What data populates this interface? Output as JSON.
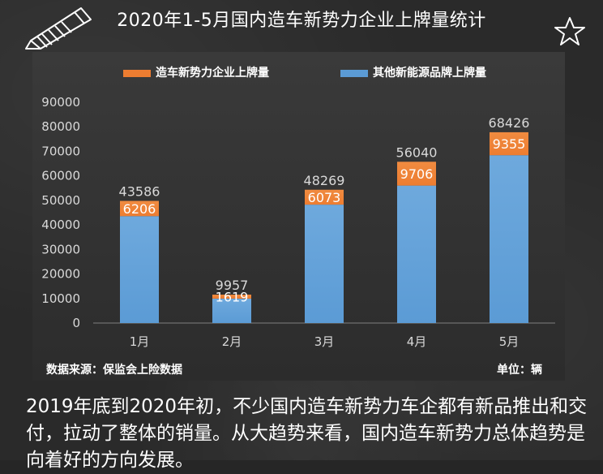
{
  "title": "2020年1-5月国内造车新势力企业上牌量统计",
  "source_note": "数据来源：保监会上险数据",
  "unit_note": "单位：辆",
  "body_text": "2019年底到2020年初，不少国内造车新势力车企都有新品推出和交付，拉动了整体的销量。从大趋势来看，国内造车新势力总体趋势是向着好的方向发展。",
  "colors": {
    "new_forces": "#ed7d31",
    "other_ev": "#5b9bd5",
    "background": "#2a2a2a",
    "text": "#ffffff"
  },
  "chart_data": {
    "type": "bar",
    "stacked": true,
    "categories": [
      "1月",
      "2月",
      "3月",
      "4月",
      "5月"
    ],
    "series": [
      {
        "name": "其他新能源品牌上牌量",
        "values": [
          43586,
          9957,
          48269,
          56040,
          68426
        ]
      },
      {
        "name": "造车新势力企业上牌量",
        "values": [
          6206,
          1619,
          6073,
          9706,
          9355
        ]
      }
    ],
    "ylim": [
      0,
      90000
    ],
    "yticks": [
      0,
      10000,
      20000,
      30000,
      40000,
      50000,
      60000,
      70000,
      80000,
      90000
    ],
    "legend_position": "top",
    "grid": false
  }
}
